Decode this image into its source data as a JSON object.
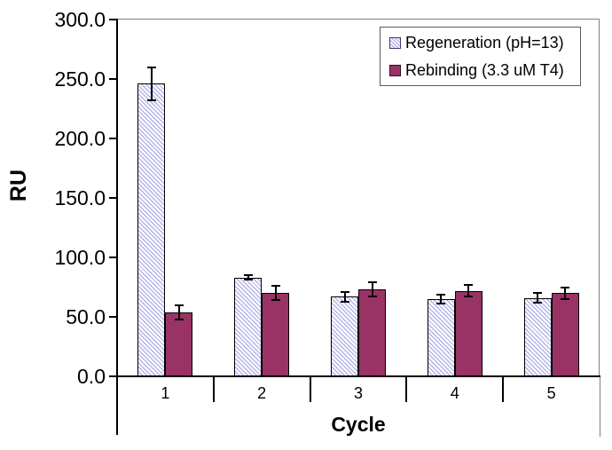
{
  "chart_data": {
    "type": "bar",
    "title": "",
    "xlabel": "Cycle",
    "ylabel": "RU",
    "categories": [
      "1",
      "2",
      "3",
      "4",
      "5"
    ],
    "series": [
      {
        "name": "Regeneration (pH=13)",
        "values": [
          246,
          83,
          67,
          65,
          66
        ],
        "errors": [
          14,
          2,
          4,
          4,
          4
        ],
        "style": "hatched",
        "color": "#ccccf2"
      },
      {
        "name": "Rebinding (3.3 uM T4)",
        "values": [
          54,
          70,
          73,
          72,
          70
        ],
        "errors": [
          6,
          6,
          6,
          5,
          5
        ],
        "style": "solid",
        "color": "#993366"
      }
    ],
    "ylim": [
      0,
      300
    ],
    "ytick_step": 50,
    "ytick_labels": [
      "0.0",
      "50.0",
      "100.0",
      "150.0",
      "200.0",
      "250.0",
      "300.0"
    ],
    "legend_position": "top-right",
    "grid": false,
    "error_bar_color": "#000000",
    "axis_color": "#000000",
    "plot_border_color": "#808080"
  }
}
